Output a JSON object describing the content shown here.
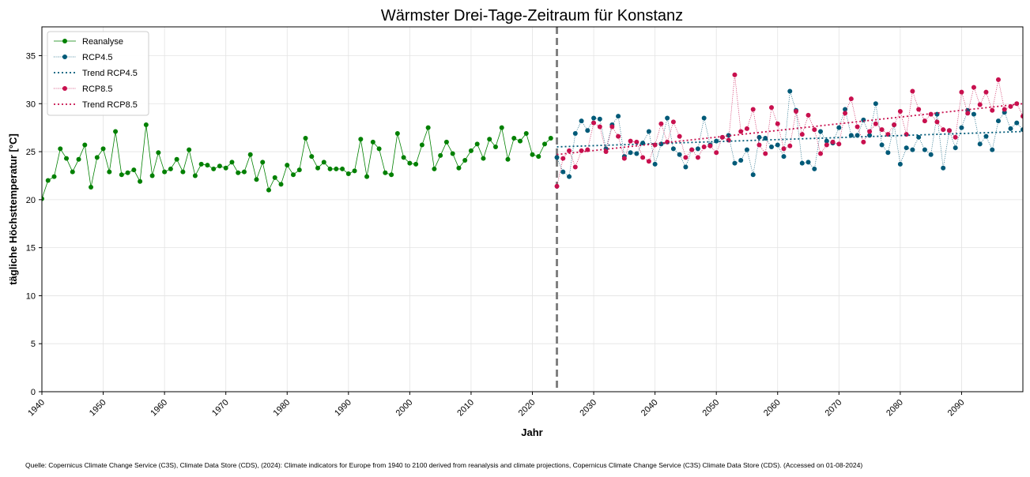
{
  "chart_data": {
    "type": "line",
    "title": "Wärmster Drei-Tage-Zeitraum für Konstanz",
    "xlabel": "Jahr",
    "ylabel": "tägliche Höchsttemperatur [°C]",
    "xlim": [
      1940,
      2100
    ],
    "ylim": [
      0,
      38
    ],
    "x_ticks": [
      "1940",
      "1950",
      "1960",
      "1970",
      "1980",
      "1990",
      "2000",
      "2010",
      "2020",
      "2030",
      "2040",
      "2050",
      "2060",
      "2070",
      "2080",
      "2090"
    ],
    "y_ticks": [
      "0",
      "5",
      "10",
      "15",
      "20",
      "25",
      "30",
      "35"
    ],
    "grid": true,
    "legend_position": "top-left",
    "vline_x": 2024,
    "series": [
      {
        "name": "Reanalyse",
        "color": "#008000",
        "style": "solid-markers",
        "x_start": 1940,
        "values": [
          20.1,
          22.0,
          22.4,
          25.3,
          24.3,
          22.9,
          24.2,
          25.7,
          21.3,
          24.4,
          25.3,
          22.9,
          27.1,
          22.6,
          22.8,
          23.1,
          21.9,
          27.8,
          22.5,
          24.9,
          22.9,
          23.2,
          24.2,
          22.9,
          25.2,
          22.5,
          23.7,
          23.6,
          23.2,
          23.5,
          23.3,
          23.9,
          22.8,
          22.9,
          24.7,
          22.1,
          23.9,
          21.0,
          22.3,
          21.6,
          23.6,
          22.6,
          23.1,
          26.4,
          24.5,
          23.3,
          23.9,
          23.2,
          23.2,
          23.2,
          22.7,
          23.0,
          26.3,
          22.4,
          26.0,
          25.3,
          22.8,
          22.6,
          26.9,
          24.4,
          23.8,
          23.7,
          25.7,
          27.5,
          23.2,
          24.6,
          26.0,
          24.8,
          23.3,
          24.1,
          25.1,
          25.8,
          24.3,
          26.3,
          25.5,
          27.5,
          24.2,
          26.4,
          26.1,
          26.9,
          24.7,
          24.5,
          25.8,
          26.4
        ]
      },
      {
        "name": "RCP4.5",
        "color": "#005A78",
        "style": "dotted-markers",
        "x_start": 2024,
        "values": [
          24.4,
          22.9,
          22.4,
          26.9,
          28.2,
          27.2,
          28.5,
          28.4,
          25.3,
          27.8,
          28.7,
          24.5,
          24.9,
          24.8,
          25.9,
          27.1,
          23.7,
          25.8,
          28.5,
          25.3,
          24.7,
          23.4,
          25.2,
          25.3,
          28.5,
          25.7,
          26.1,
          26.5,
          26.7,
          23.8,
          24.1,
          25.2,
          22.6,
          26.5,
          26.4,
          25.5,
          25.7,
          24.5,
          31.3,
          29.3,
          23.8,
          23.9,
          23.2,
          27.1,
          26.1,
          25.9,
          27.5,
          29.4,
          26.7,
          26.7,
          28.3,
          26.7,
          30.0,
          25.7,
          24.9,
          27.8,
          23.7,
          25.4,
          25.2,
          26.5,
          25.2,
          24.7,
          28.9,
          23.3,
          27.2,
          25.4,
          27.5,
          29.3,
          28.9,
          25.8,
          26.6,
          25.2,
          28.2,
          29.1,
          27.4,
          28.0,
          27.3
        ]
      },
      {
        "name": "RCP8.5",
        "color": "#C8104E",
        "style": "dotted-markers",
        "x_start": 2024,
        "values": [
          21.4,
          24.3,
          25.1,
          23.4,
          25.1,
          25.2,
          28.0,
          27.6,
          25.0,
          27.6,
          26.6,
          24.3,
          26.1,
          26.0,
          24.4,
          24.0,
          25.7,
          27.9,
          26.0,
          28.1,
          26.6,
          24.4,
          25.2,
          24.4,
          25.5,
          25.6,
          24.9,
          26.5,
          26.2,
          33.0,
          27.1,
          27.4,
          29.4,
          25.7,
          24.8,
          29.6,
          27.9,
          25.3,
          25.6,
          29.2,
          26.8,
          28.8,
          27.3,
          24.8,
          25.7,
          26.0,
          25.8,
          29.0,
          30.5,
          27.6,
          26.0,
          27.1,
          27.9,
          27.3,
          26.8,
          27.8,
          29.2,
          26.8,
          31.3,
          29.4,
          28.2,
          28.9,
          28.1,
          27.3,
          27.2,
          26.5,
          31.2,
          29.0,
          31.7,
          29.9,
          31.2,
          29.3,
          32.5,
          29.4,
          29.7,
          30.0,
          28.7
        ]
      }
    ],
    "trends": [
      {
        "name": "Trend RCP4.5",
        "color": "#005A78",
        "x": [
          2024,
          2100
        ],
        "y": [
          25.5,
          27.1
        ]
      },
      {
        "name": "Trend RCP8.5",
        "color": "#C8104E",
        "x": [
          2024,
          2100
        ],
        "y": [
          24.7,
          30.0
        ]
      }
    ]
  },
  "source_note": "Quelle: Copernicus Climate Change Service (C3S), Climate Data Store (CDS), (2024): Climate indicators for Europe from 1940 to 2100 derived from reanalysis and climate projections, Copernicus Climate Change Service (C3S) Climate Data Store (CDS). (Accessed on 01-08-2024)"
}
